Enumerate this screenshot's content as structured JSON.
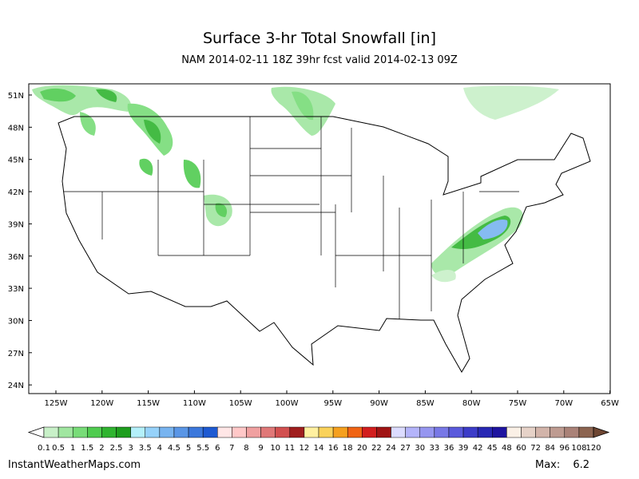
{
  "header": {
    "title": "Surface 3-hr Total Snowfall [in]",
    "subtitle": "NAM 2014-02-11 18Z 39hr fcst valid 2014-02-13 09Z"
  },
  "map": {
    "lat_labels": [
      "51N",
      "48N",
      "45N",
      "42N",
      "39N",
      "36N",
      "33N",
      "30N",
      "27N",
      "24N"
    ],
    "lon_labels": [
      "125W",
      "120W",
      "115W",
      "110W",
      "105W",
      "100W",
      "95W",
      "90W",
      "85W",
      "80W",
      "75W",
      "70W",
      "65W"
    ]
  },
  "colorbar": {
    "levels": [
      0.1,
      0.5,
      1,
      1.5,
      2,
      2.5,
      3,
      3.5,
      4,
      4.5,
      5,
      5.5,
      6,
      7,
      8,
      9,
      10,
      11,
      12,
      14,
      16,
      18,
      20,
      22,
      24,
      27,
      30,
      33,
      36,
      39,
      42,
      45,
      48,
      60,
      72,
      84,
      96,
      108,
      120
    ],
    "colors": [
      "#c8f0c8",
      "#a0e6a0",
      "#78dc78",
      "#50cc50",
      "#30b430",
      "#1e9e1e",
      "#b4f0fa",
      "#96d2fa",
      "#78b4f0",
      "#5a96e6",
      "#3c78dc",
      "#1e5ad2",
      "#ffe6e6",
      "#ffc8c8",
      "#f0a0a0",
      "#e07878",
      "#d25050",
      "#a01e1e",
      "#fff0a0",
      "#fad25a",
      "#f5a01e",
      "#f06414",
      "#d21e1e",
      "#a01414",
      "#dcdcff",
      "#b4b4fa",
      "#9696f0",
      "#7878e6",
      "#5a5adc",
      "#3c3cc8",
      "#2828b4",
      "#1e14a0",
      "#faf0e6",
      "#e6d2c8",
      "#d2b4aa",
      "#be9b91",
      "#aa8278",
      "#8c6450"
    ]
  },
  "footer": {
    "site": "InstantWeatherMaps.com",
    "max_label": "Max:",
    "max_value": 6.2
  }
}
